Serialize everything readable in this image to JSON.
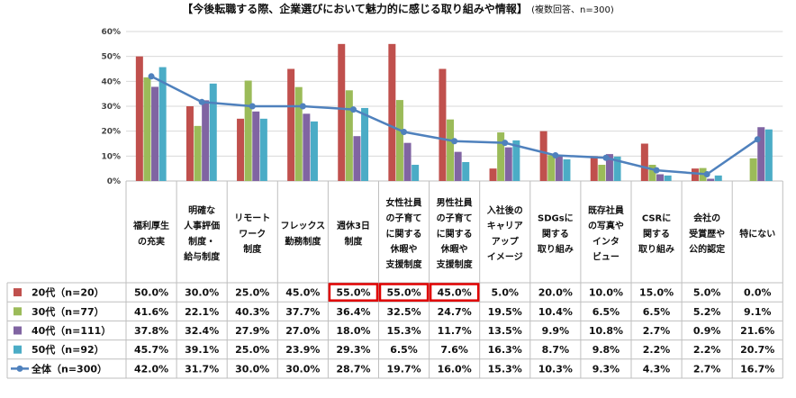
{
  "chart_data": {
    "type": "bar",
    "title": "【今後転職する際、企業選びにおいて魅力的に感じる取り組みや情報】",
    "subtitle": "(複数回答、n=300)",
    "ylim": [
      0,
      60
    ],
    "yticks": [
      "0%",
      "10%",
      "20%",
      "30%",
      "40%",
      "50%",
      "60%"
    ],
    "categories": [
      [
        "福利厚生",
        "の充実"
      ],
      [
        "明確な",
        "人事評価",
        "制度・",
        "給与制度"
      ],
      [
        "リモート",
        "ワーク",
        "制度"
      ],
      [
        "フレックス",
        "勤務制度"
      ],
      [
        "週休3日",
        "制度"
      ],
      [
        "女性社員",
        "の子育て",
        "に関する",
        "休暇や",
        "支援制度"
      ],
      [
        "男性社員",
        "の子育て",
        "に関する",
        "休暇や",
        "支援制度"
      ],
      [
        "入社後の",
        "キャリア",
        "アップ",
        "イメージ"
      ],
      [
        "SDGsに",
        "関する",
        "取り組み"
      ],
      [
        "既存社員",
        "の写真や",
        "インタ",
        "ビュー"
      ],
      [
        "CSRに",
        "関する",
        "取り組み"
      ],
      [
        "会社の",
        "受賞歴や",
        "公的認定"
      ],
      [
        "特にない"
      ]
    ],
    "series": [
      {
        "name": "20代（n=20）",
        "color": "#c0504d",
        "values": [
          50.0,
          30.0,
          25.0,
          45.0,
          55.0,
          55.0,
          45.0,
          5.0,
          20.0,
          10.0,
          15.0,
          5.0,
          0.0
        ]
      },
      {
        "name": "30代（n=77）",
        "color": "#9bbb59",
        "values": [
          41.6,
          22.1,
          40.3,
          37.7,
          36.4,
          32.5,
          24.7,
          19.5,
          10.4,
          6.5,
          6.5,
          5.2,
          9.1
        ]
      },
      {
        "name": "40代（n=111）",
        "color": "#8064a2",
        "values": [
          37.8,
          32.4,
          27.9,
          27.0,
          18.0,
          15.3,
          11.7,
          13.5,
          9.9,
          10.8,
          2.7,
          0.9,
          21.6
        ]
      },
      {
        "name": "50代（n=92）",
        "color": "#4bacc6",
        "values": [
          45.7,
          39.1,
          25.0,
          23.9,
          29.3,
          6.5,
          7.6,
          16.3,
          8.7,
          9.8,
          2.2,
          2.2,
          20.7
        ]
      }
    ],
    "line": {
      "name": "全体（n=300）",
      "color": "#4f81bd",
      "values": [
        42.0,
        31.7,
        30.0,
        30.0,
        28.7,
        19.7,
        16.0,
        15.3,
        10.3,
        9.3,
        4.3,
        2.7,
        16.7
      ]
    },
    "highlights": [
      {
        "series": 0,
        "category": 4
      },
      {
        "series": 0,
        "category": 5
      },
      {
        "series": 0,
        "category": 6
      }
    ],
    "highlight_color": "#e00000"
  }
}
